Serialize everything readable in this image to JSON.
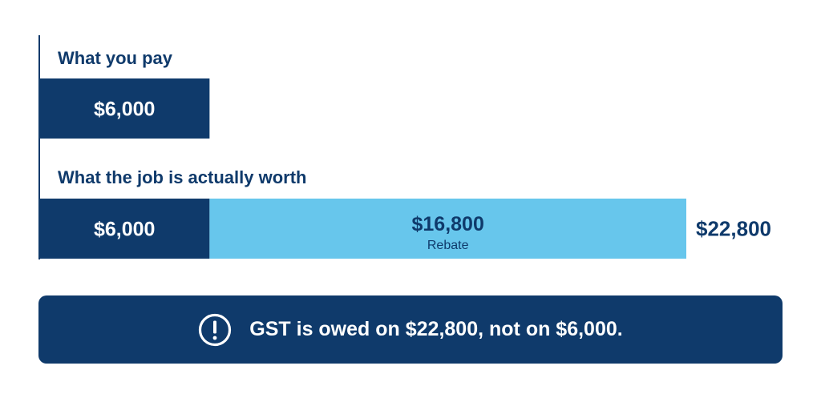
{
  "colors": {
    "dark_navy": "#0f3a6b",
    "light_blue": "#67c6ec",
    "text_navy": "#0f3a6b",
    "axis": "#0f3a6b",
    "white": "#ffffff"
  },
  "chart_data": {
    "type": "bar",
    "orientation": "horizontal",
    "stacked": true,
    "title": "",
    "xlabel": "",
    "ylabel": "",
    "grid": false,
    "categories": [
      "What you pay",
      "What the job is actually worth"
    ],
    "xlim": [
      0,
      22800
    ],
    "series": [
      {
        "color": "#0f3a6b",
        "values": [
          6000,
          6000
        ],
        "data_labels": [
          "$6,000",
          "$6,000"
        ],
        "sublabels": [
          "",
          ""
        ]
      },
      {
        "color": "#67c6ec",
        "values": [
          0,
          16800
        ],
        "data_labels": [
          "",
          "$16,800"
        ],
        "sublabels": [
          "",
          "Rebate"
        ]
      }
    ],
    "totals": [
      null,
      22800
    ],
    "total_labels": [
      "",
      "$22,800"
    ]
  },
  "note": {
    "text": "GST is owed on $22,800, not on $6,000.",
    "icon": "exclamation-circle-icon",
    "background": "#0f3a6b"
  }
}
